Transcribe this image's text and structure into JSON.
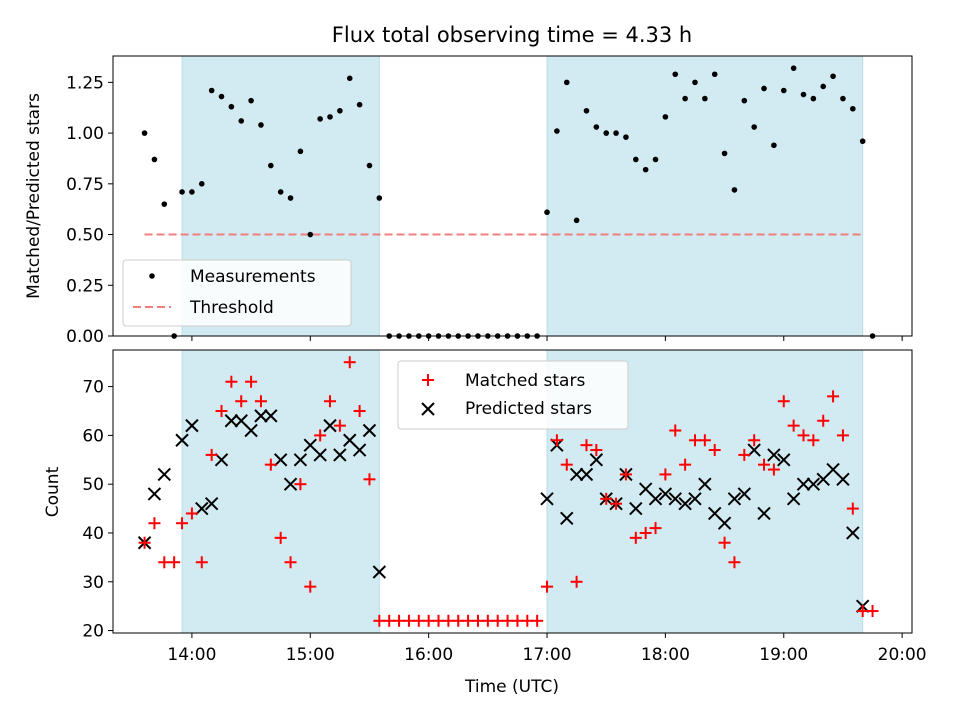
{
  "chart_data": [
    {
      "type": "scatter",
      "title": "Flux total observing time = 4.33 h",
      "xlabel": "",
      "ylabel": "Matched/Predicted stars",
      "ylim": [
        0,
        1.38
      ],
      "xlim": [
        "13:20",
        "20:05"
      ],
      "yticks": [
        "0.00",
        "0.25",
        "0.50",
        "0.75",
        "1.00",
        "1.25"
      ],
      "xticks": [
        "14:00",
        "15:00",
        "16:00",
        "17:00",
        "18:00",
        "19:00",
        "20:00"
      ],
      "legend_position": "lower-left",
      "shaded_intervals": [
        [
          "13:55",
          "15:35"
        ],
        [
          "17:00",
          "19:40"
        ]
      ],
      "series": [
        {
          "name": "Measurements",
          "x": [
            "13:36",
            "13:41",
            "13:46",
            "13:51",
            "13:55",
            "14:00",
            "14:05",
            "14:10",
            "14:15",
            "14:20",
            "14:25",
            "14:30",
            "14:35",
            "14:40",
            "14:45",
            "14:50",
            "14:55",
            "15:00",
            "15:05",
            "15:10",
            "15:15",
            "15:20",
            "15:25",
            "15:30",
            "15:35",
            "15:40",
            "15:45",
            "15:50",
            "15:55",
            "16:00",
            "16:05",
            "16:10",
            "16:15",
            "16:20",
            "16:25",
            "16:30",
            "16:35",
            "16:40",
            "16:45",
            "16:50",
            "16:55",
            "17:00",
            "17:05",
            "17:10",
            "17:15",
            "17:20",
            "17:25",
            "17:30",
            "17:35",
            "17:40",
            "17:45",
            "17:50",
            "17:55",
            "18:00",
            "18:05",
            "18:10",
            "18:15",
            "18:20",
            "18:25",
            "18:30",
            "18:35",
            "18:40",
            "18:45",
            "18:50",
            "18:55",
            "19:00",
            "19:05",
            "19:10",
            "19:15",
            "19:20",
            "19:25",
            "19:30",
            "19:35",
            "19:40",
            "19:45"
          ],
          "y": [
            1.0,
            0.87,
            0.65,
            0.0,
            0.71,
            0.71,
            0.75,
            1.21,
            1.18,
            1.13,
            1.06,
            1.16,
            1.04,
            0.84,
            0.71,
            0.68,
            0.91,
            0.5,
            1.07,
            1.08,
            1.11,
            1.27,
            1.14,
            0.84,
            0.68,
            0.0,
            0.0,
            0.0,
            0.0,
            0.0,
            0.0,
            0.0,
            0.0,
            0.0,
            0.0,
            0.0,
            0.0,
            0.0,
            0.0,
            0.0,
            0.0,
            0.61,
            1.01,
            1.25,
            0.57,
            1.11,
            1.03,
            1.0,
            1.0,
            0.98,
            0.87,
            0.82,
            0.87,
            1.08,
            1.29,
            1.17,
            1.25,
            1.17,
            1.29,
            0.9,
            0.72,
            1.16,
            1.03,
            1.22,
            0.94,
            1.21,
            1.32,
            1.19,
            1.17,
            1.23,
            1.28,
            1.17,
            1.12,
            0.96,
            0.0
          ]
        },
        {
          "name": "Threshold",
          "x": [
            "13:36",
            "19:40"
          ],
          "y": [
            0.5,
            0.5
          ]
        }
      ]
    },
    {
      "type": "scatter",
      "title": "",
      "xlabel": "Time (UTC)",
      "ylabel": "Count",
      "ylim": [
        19.5,
        77.5
      ],
      "xlim": [
        "13:20",
        "20:05"
      ],
      "yticks": [
        "20",
        "30",
        "40",
        "50",
        "60",
        "70"
      ],
      "xticks": [
        "14:00",
        "15:00",
        "16:00",
        "17:00",
        "18:00",
        "19:00",
        "20:00"
      ],
      "legend_position": "upper-center",
      "shaded_intervals": [
        [
          "13:55",
          "15:35"
        ],
        [
          "17:00",
          "19:40"
        ]
      ],
      "series": [
        {
          "name": "Matched stars",
          "x": [
            "13:36",
            "13:41",
            "13:46",
            "13:51",
            "13:55",
            "14:00",
            "14:05",
            "14:10",
            "14:15",
            "14:20",
            "14:25",
            "14:30",
            "14:35",
            "14:40",
            "14:45",
            "14:50",
            "14:55",
            "15:00",
            "15:05",
            "15:10",
            "15:15",
            "15:20",
            "15:25",
            "15:30",
            "15:35",
            "15:40",
            "15:45",
            "15:50",
            "15:55",
            "16:00",
            "16:05",
            "16:10",
            "16:15",
            "16:20",
            "16:25",
            "16:30",
            "16:35",
            "16:40",
            "16:45",
            "16:50",
            "16:55",
            "17:00",
            "17:05",
            "17:10",
            "17:15",
            "17:20",
            "17:25",
            "17:30",
            "17:35",
            "17:40",
            "17:45",
            "17:50",
            "17:55",
            "18:00",
            "18:05",
            "18:10",
            "18:15",
            "18:20",
            "18:25",
            "18:30",
            "18:35",
            "18:40",
            "18:45",
            "18:50",
            "18:55",
            "19:00",
            "19:05",
            "19:10",
            "19:15",
            "19:20",
            "19:25",
            "19:30",
            "19:35",
            "19:40",
            "19:45"
          ],
          "y": [
            38,
            42,
            34,
            34,
            42,
            44,
            34,
            56,
            65,
            71,
            67,
            71,
            67,
            54,
            39,
            34,
            50,
            29,
            60,
            67,
            62,
            75,
            65,
            51,
            22,
            22,
            22,
            22,
            22,
            22,
            22,
            22,
            22,
            22,
            22,
            22,
            22,
            22,
            22,
            22,
            22,
            29,
            59,
            54,
            30,
            58,
            57,
            47,
            46,
            52,
            39,
            40,
            41,
            52,
            61,
            54,
            59,
            59,
            57,
            38,
            34,
            56,
            59,
            54,
            53,
            67,
            62,
            60,
            59,
            63,
            68,
            60,
            45,
            24,
            24
          ]
        },
        {
          "name": "Predicted stars",
          "x": [
            "13:36",
            "13:41",
            "13:46",
            "13:55",
            "14:00",
            "14:05",
            "14:10",
            "14:15",
            "14:20",
            "14:25",
            "14:30",
            "14:35",
            "14:40",
            "14:45",
            "14:50",
            "14:55",
            "15:00",
            "15:05",
            "15:10",
            "15:15",
            "15:20",
            "15:25",
            "15:30",
            "15:35",
            "17:00",
            "17:05",
            "17:10",
            "17:15",
            "17:20",
            "17:25",
            "17:30",
            "17:35",
            "17:40",
            "17:45",
            "17:50",
            "17:55",
            "18:00",
            "18:05",
            "18:10",
            "18:15",
            "18:20",
            "18:25",
            "18:30",
            "18:35",
            "18:40",
            "18:45",
            "18:50",
            "18:55",
            "19:00",
            "19:05",
            "19:10",
            "19:15",
            "19:20",
            "19:25",
            "19:30",
            "19:35",
            "19:40"
          ],
          "y": [
            38,
            48,
            52,
            59,
            62,
            45,
            46,
            55,
            63,
            63,
            61,
            64,
            64,
            55,
            50,
            55,
            58,
            56,
            62,
            56,
            59,
            57,
            61,
            32,
            47,
            58,
            43,
            52,
            52,
            55,
            47,
            46,
            52,
            45,
            49,
            47,
            48,
            47,
            46,
            47,
            50,
            44,
            42,
            47,
            48,
            57,
            44,
            56,
            55,
            47,
            50,
            50,
            51,
            53,
            51,
            40,
            25
          ]
        }
      ]
    }
  ]
}
